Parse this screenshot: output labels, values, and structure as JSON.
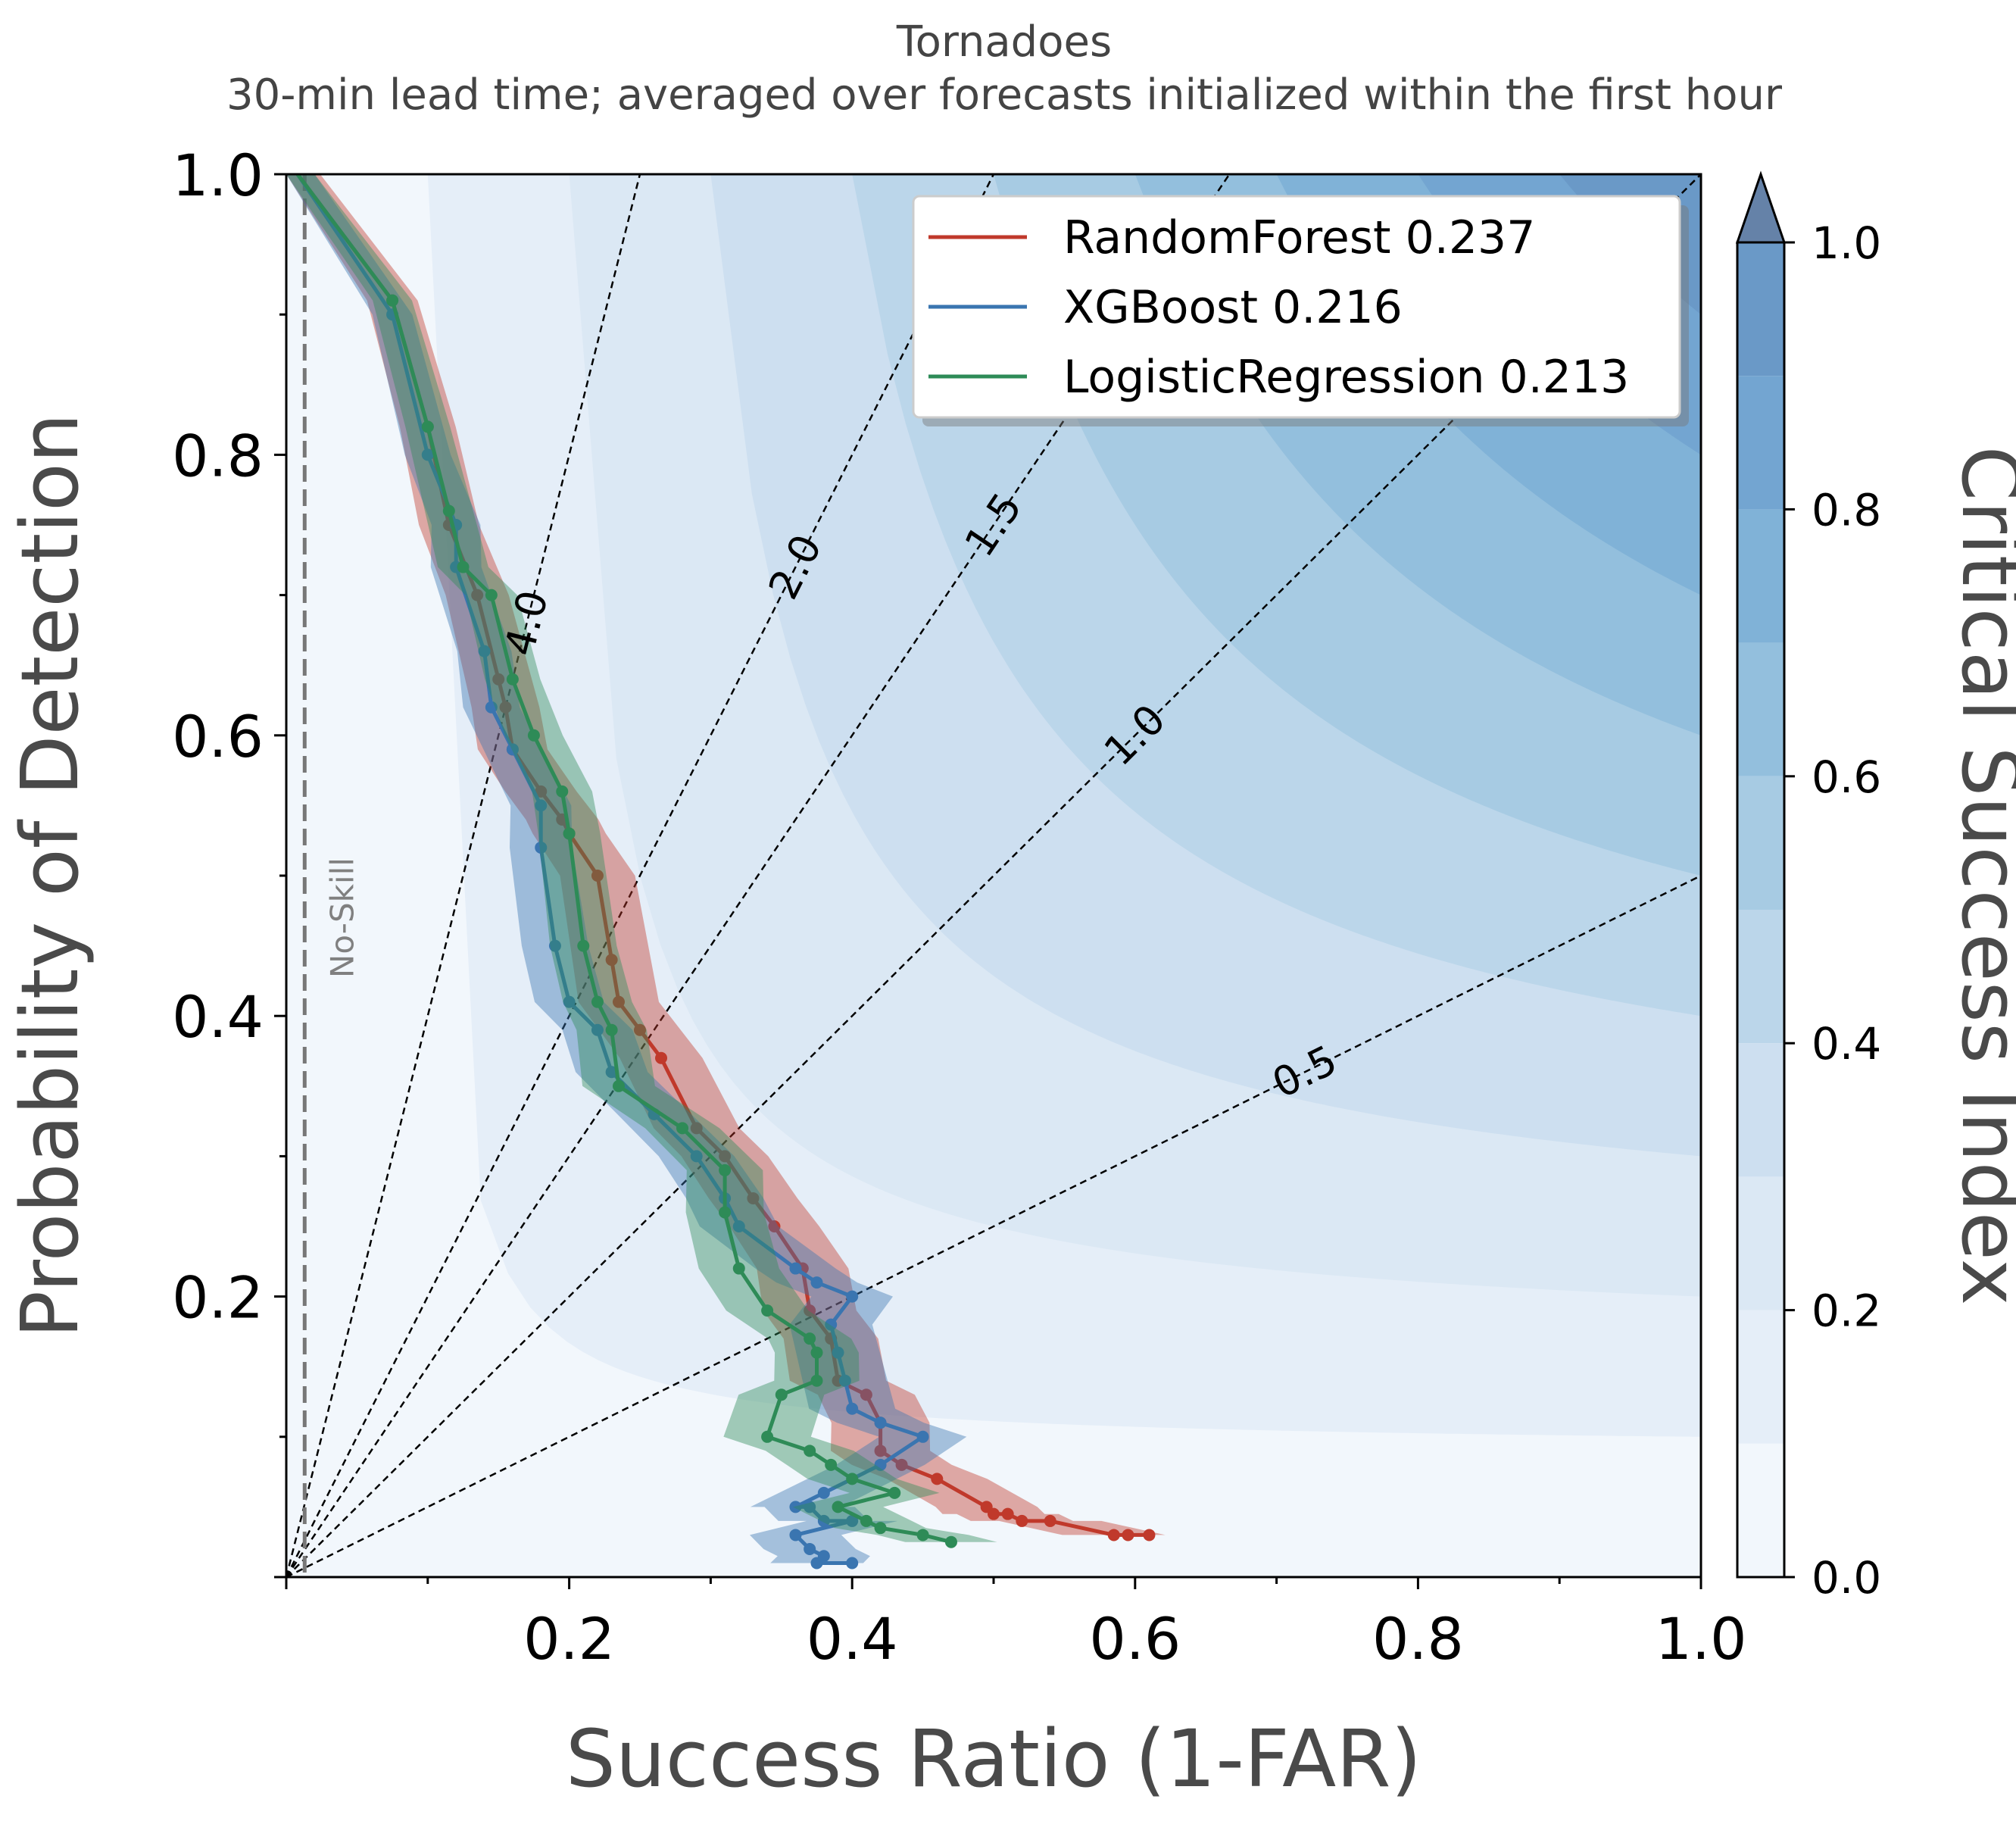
{
  "chart_data": {
    "type": "line",
    "title": "Tornadoes",
    "subtitle": "30-min lead time; averaged over forecasts initialized within the first hour",
    "xlabel": "Success Ratio (1-FAR)",
    "ylabel": "Probability of Detection",
    "xlim": [
      0,
      1
    ],
    "ylim": [
      0,
      1
    ],
    "xticks": [
      "0.2",
      "0.4",
      "0.6",
      "0.8",
      "1.0"
    ],
    "yticks": [
      "0.2",
      "0.4",
      "0.6",
      "0.8",
      "1.0"
    ],
    "grid": false,
    "legend_position": "top-right",
    "colorbar": {
      "label": "Critical Success Index",
      "ticks": [
        "0.0",
        "0.2",
        "0.4",
        "0.6",
        "0.8",
        "1.0"
      ],
      "levels": [
        0.0,
        0.1,
        0.2,
        0.3,
        0.4,
        0.5,
        0.6,
        0.7,
        0.8,
        0.9,
        1.0
      ],
      "extend": "max"
    },
    "bias_lines": [
      {
        "bias": 4.0,
        "label": "4.0"
      },
      {
        "bias": 2.0,
        "label": "2.0"
      },
      {
        "bias": 1.5,
        "label": "1.5"
      },
      {
        "bias": 1.0,
        "label": "1.0"
      },
      {
        "bias": 0.5,
        "label": "0.5"
      }
    ],
    "no_skill": {
      "x": 0.013,
      "label": "No-Skill"
    },
    "series": [
      {
        "name": "RandomForest 0.237",
        "color": "#c0392b",
        "x": [
          0.008,
          0.075,
          0.1,
          0.115,
          0.135,
          0.15,
          0.155,
          0.16,
          0.18,
          0.195,
          0.2,
          0.22,
          0.23,
          0.235,
          0.25,
          0.265,
          0.29,
          0.31,
          0.33,
          0.345,
          0.365,
          0.37,
          0.385,
          0.39,
          0.41,
          0.42,
          0.42,
          0.435,
          0.46,
          0.495,
          0.5,
          0.51,
          0.52,
          0.54,
          0.585,
          0.595,
          0.61
        ],
        "y": [
          1.0,
          0.91,
          0.82,
          0.75,
          0.7,
          0.64,
          0.62,
          0.59,
          0.56,
          0.54,
          0.53,
          0.5,
          0.44,
          0.41,
          0.39,
          0.37,
          0.32,
          0.3,
          0.27,
          0.25,
          0.22,
          0.19,
          0.17,
          0.14,
          0.13,
          0.11,
          0.09,
          0.08,
          0.07,
          0.05,
          0.045,
          0.045,
          0.04,
          0.04,
          0.03,
          0.03,
          0.03
        ]
      },
      {
        "name": "XGBoost 0.216",
        "color": "#3a75b0",
        "x": [
          0.008,
          0.075,
          0.1,
          0.12,
          0.12,
          0.14,
          0.145,
          0.16,
          0.18,
          0.18,
          0.19,
          0.2,
          0.22,
          0.23,
          0.26,
          0.29,
          0.31,
          0.32,
          0.36,
          0.375,
          0.4,
          0.385,
          0.39,
          0.395,
          0.4,
          0.42,
          0.45,
          0.42,
          0.38,
          0.36,
          0.37,
          0.38,
          0.4,
          0.36,
          0.37,
          0.38,
          0.375,
          0.4
        ],
        "y": [
          1.0,
          0.9,
          0.8,
          0.75,
          0.72,
          0.66,
          0.62,
          0.59,
          0.55,
          0.52,
          0.45,
          0.41,
          0.39,
          0.36,
          0.33,
          0.3,
          0.27,
          0.25,
          0.22,
          0.21,
          0.2,
          0.18,
          0.16,
          0.14,
          0.12,
          0.11,
          0.1,
          0.08,
          0.06,
          0.05,
          0.05,
          0.04,
          0.04,
          0.03,
          0.02,
          0.015,
          0.01,
          0.01
        ]
      },
      {
        "name": "LogisticRegression 0.213",
        "color": "#2e8b57",
        "x": [
          0.008,
          0.075,
          0.1,
          0.115,
          0.125,
          0.145,
          0.16,
          0.175,
          0.195,
          0.2,
          0.21,
          0.22,
          0.23,
          0.235,
          0.28,
          0.31,
          0.31,
          0.32,
          0.34,
          0.37,
          0.375,
          0.375,
          0.35,
          0.34,
          0.37,
          0.385,
          0.4,
          0.43,
          0.39,
          0.41,
          0.42,
          0.45,
          0.47
        ],
        "y": [
          1.0,
          0.91,
          0.82,
          0.76,
          0.72,
          0.7,
          0.64,
          0.6,
          0.56,
          0.53,
          0.45,
          0.41,
          0.39,
          0.35,
          0.32,
          0.29,
          0.26,
          0.22,
          0.19,
          0.17,
          0.16,
          0.14,
          0.13,
          0.1,
          0.09,
          0.08,
          0.07,
          0.06,
          0.05,
          0.04,
          0.035,
          0.03,
          0.025
        ]
      }
    ]
  }
}
